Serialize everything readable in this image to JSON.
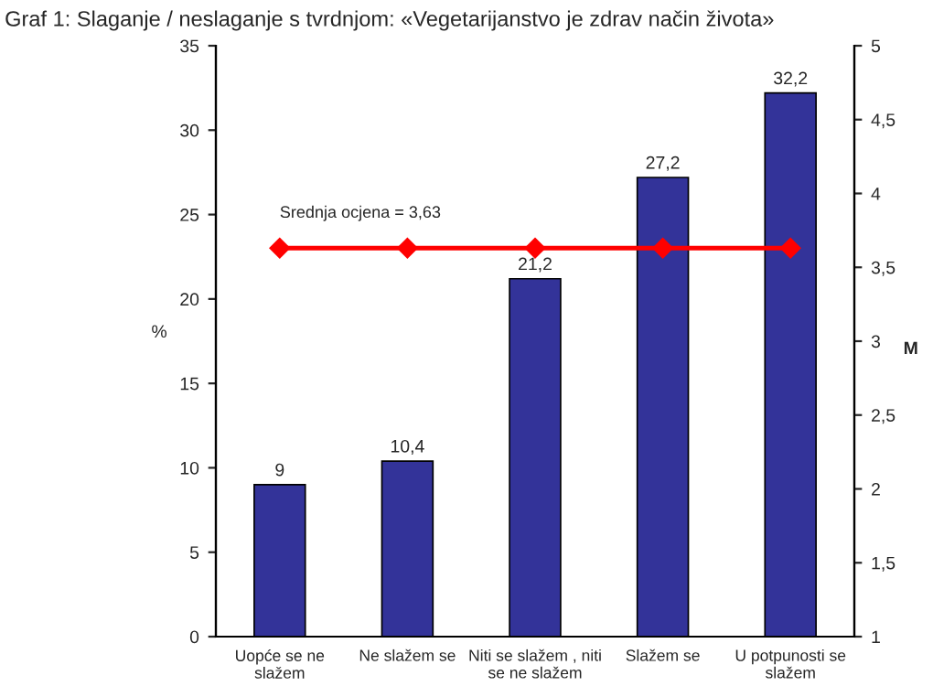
{
  "chart_data": {
    "type": "bar",
    "title": "Graf 1: Slaganje / neslaganje s tvrdnjom: «Vegetarijanstvo je zdrav način života»",
    "ylabel": "%",
    "y2label": "M",
    "categories": [
      "Uopće se ne\nslažem",
      "Ne slažem se",
      "Niti se slažem , niti\nse ne slažem",
      "Slažem se",
      "U potpunosti se\nslažem"
    ],
    "series": [
      {
        "color": "#333399",
        "values": [
          9,
          10.4,
          21.2,
          27.2,
          32.2
        ],
        "value_labels": [
          "9",
          "10,4",
          "21,2",
          "27,2",
          "32,2"
        ]
      },
      {
        "type": "line",
        "axis": "y2",
        "color": "#ff0000",
        "marker": "diamond",
        "line_style": "solid",
        "values": [
          3.63,
          3.63,
          3.63,
          3.63,
          3.63
        ]
      }
    ],
    "ylim": [
      0,
      35
    ],
    "yticks": [
      0,
      5,
      10,
      15,
      20,
      25,
      30,
      35
    ],
    "y2lim": [
      1,
      5
    ],
    "y2ticks": [
      1,
      {
        "value": 1.5,
        "label": "1,5"
      },
      2,
      {
        "value": 2.5,
        "label": "2,5"
      },
      3,
      {
        "value": 3.5,
        "label": "3,5"
      },
      4,
      {
        "value": 4.5,
        "label": "4,5"
      },
      5
    ],
    "annotations": [
      "Srednja ocjena = 3,63"
    ],
    "grid": false,
    "legend": false
  }
}
